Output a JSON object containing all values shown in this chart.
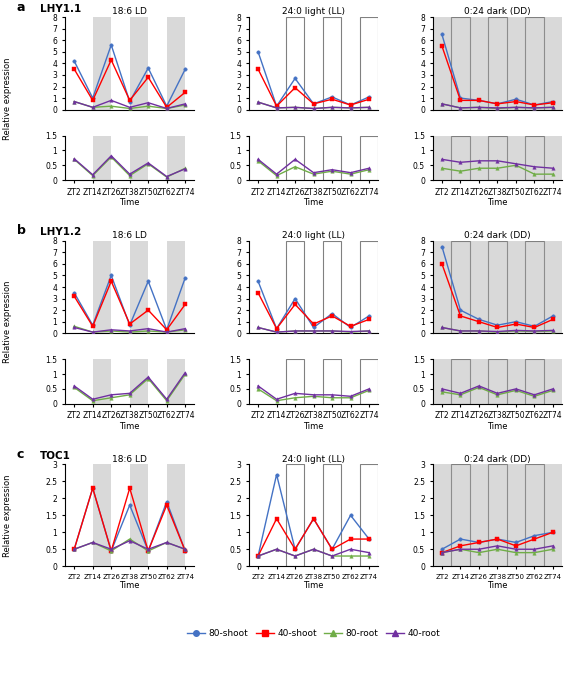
{
  "panels": [
    {
      "row_label": "a",
      "gene": "LHY1.1",
      "has_lower": true,
      "ylim_upper": [
        0,
        8
      ],
      "ylim_lower": [
        0,
        1.5
      ],
      "yticks_upper": [
        0,
        1,
        2,
        3,
        4,
        5,
        6,
        7,
        8
      ],
      "yticks_lower": [
        0,
        0.5,
        1,
        1.5
      ],
      "conditions": [
        {
          "title": "18:6 LD",
          "shade": "LD",
          "upper": {
            "80s": [
              4.2,
              1.0,
              5.6,
              0.7,
              3.6,
              0.3,
              3.5
            ],
            "40s": [
              3.5,
              0.8,
              4.3,
              0.8,
              2.8,
              0.2,
              1.5
            ],
            "80r": [
              0.7,
              0.2,
              0.3,
              0.1,
              0.3,
              0.1,
              0.4
            ],
            "40r": [
              0.7,
              0.2,
              0.8,
              0.2,
              0.6,
              0.1,
              0.5
            ]
          },
          "lower": {
            "80r": [
              0.7,
              0.15,
              0.78,
              0.15,
              0.55,
              0.1,
              0.4
            ],
            "40r": [
              0.72,
              0.18,
              0.82,
              0.2,
              0.58,
              0.12,
              0.38
            ]
          }
        },
        {
          "title": "24:0 light (LL)",
          "shade": "LL",
          "upper": {
            "80s": [
              5.0,
              0.3,
              2.7,
              0.5,
              1.1,
              0.4,
              1.1
            ],
            "40s": [
              3.5,
              0.3,
              1.9,
              0.5,
              0.9,
              0.4,
              0.9
            ],
            "80r": [
              0.65,
              0.15,
              0.2,
              0.1,
              0.2,
              0.15,
              0.2
            ],
            "40r": [
              0.65,
              0.15,
              0.2,
              0.1,
              0.2,
              0.15,
              0.2
            ]
          },
          "lower": {
            "80r": [
              0.65,
              0.15,
              0.45,
              0.2,
              0.3,
              0.2,
              0.35
            ],
            "40r": [
              0.7,
              0.2,
              0.7,
              0.25,
              0.35,
              0.25,
              0.4
            ]
          }
        },
        {
          "title": "0:24 dark (DD)",
          "shade": "DD",
          "upper": {
            "80s": [
              6.5,
              1.0,
              0.8,
              0.5,
              0.9,
              0.4,
              0.7
            ],
            "40s": [
              5.5,
              0.8,
              0.8,
              0.5,
              0.7,
              0.4,
              0.6
            ],
            "80r": [
              0.5,
              0.15,
              0.2,
              0.1,
              0.2,
              0.15,
              0.2
            ],
            "40r": [
              0.5,
              0.15,
              0.2,
              0.15,
              0.2,
              0.15,
              0.2
            ]
          },
          "lower": {
            "80r": [
              0.4,
              0.3,
              0.4,
              0.4,
              0.5,
              0.2,
              0.2
            ],
            "40r": [
              0.7,
              0.6,
              0.65,
              0.65,
              0.55,
              0.45,
              0.4
            ]
          }
        }
      ]
    },
    {
      "row_label": "b",
      "gene": "LHY1.2",
      "has_lower": true,
      "ylim_upper": [
        0,
        8
      ],
      "ylim_lower": [
        0,
        1.5
      ],
      "yticks_upper": [
        0,
        1,
        2,
        3,
        4,
        5,
        6,
        7,
        8
      ],
      "yticks_lower": [
        0,
        0.5,
        1,
        1.5
      ],
      "conditions": [
        {
          "title": "18:6 LD",
          "shade": "LD",
          "upper": {
            "80s": [
              3.5,
              0.7,
              5.0,
              0.7,
              4.5,
              0.3,
              4.8
            ],
            "40s": [
              3.2,
              0.6,
              4.5,
              0.8,
              2.0,
              0.3,
              2.5
            ],
            "80r": [
              0.6,
              0.1,
              0.2,
              0.1,
              0.2,
              0.1,
              0.3
            ],
            "40r": [
              0.5,
              0.1,
              0.3,
              0.2,
              0.4,
              0.1,
              0.4
            ]
          },
          "lower": {
            "80r": [
              0.55,
              0.1,
              0.2,
              0.3,
              0.85,
              0.1,
              1.0
            ],
            "40r": [
              0.6,
              0.15,
              0.3,
              0.35,
              0.9,
              0.15,
              1.05
            ]
          }
        },
        {
          "title": "24:0 light (LL)",
          "shade": "LL",
          "upper": {
            "80s": [
              4.5,
              0.4,
              3.0,
              0.5,
              1.7,
              0.5,
              1.5
            ],
            "40s": [
              3.5,
              0.4,
              2.5,
              0.8,
              1.5,
              0.6,
              1.2
            ],
            "80r": [
              0.5,
              0.1,
              0.2,
              0.2,
              0.2,
              0.1,
              0.2
            ],
            "40r": [
              0.5,
              0.1,
              0.2,
              0.2,
              0.2,
              0.15,
              0.2
            ]
          },
          "lower": {
            "80r": [
              0.5,
              0.1,
              0.2,
              0.25,
              0.2,
              0.2,
              0.45
            ],
            "40r": [
              0.6,
              0.15,
              0.35,
              0.3,
              0.3,
              0.25,
              0.5
            ]
          }
        },
        {
          "title": "0:24 dark (DD)",
          "shade": "DD",
          "upper": {
            "80s": [
              7.5,
              2.0,
              1.2,
              0.7,
              1.0,
              0.6,
              1.5
            ],
            "40s": [
              6.0,
              1.5,
              1.0,
              0.5,
              0.8,
              0.5,
              1.2
            ],
            "80r": [
              0.5,
              0.2,
              0.2,
              0.1,
              0.2,
              0.15,
              0.2
            ],
            "40r": [
              0.5,
              0.2,
              0.2,
              0.15,
              0.25,
              0.2,
              0.25
            ]
          },
          "lower": {
            "80r": [
              0.4,
              0.3,
              0.55,
              0.3,
              0.45,
              0.25,
              0.45
            ],
            "40r": [
              0.5,
              0.35,
              0.6,
              0.35,
              0.5,
              0.3,
              0.5
            ]
          }
        }
      ]
    },
    {
      "row_label": "c",
      "gene": "TOC1",
      "has_lower": false,
      "ylim_upper": [
        0,
        3
      ],
      "ylim_lower": null,
      "yticks_upper": [
        0,
        0.5,
        1,
        1.5,
        2,
        2.5,
        3
      ],
      "yticks_lower": null,
      "conditions": [
        {
          "title": "18:6 LD",
          "shade": "LD",
          "upper": {
            "80s": [
              0.5,
              2.3,
              0.45,
              1.8,
              0.45,
              1.9,
              0.45
            ],
            "40s": [
              0.5,
              2.3,
              0.45,
              2.3,
              0.45,
              1.8,
              0.45
            ],
            "80r": [
              0.5,
              0.7,
              0.45,
              0.8,
              0.45,
              0.7,
              0.5
            ],
            "40r": [
              0.5,
              0.7,
              0.5,
              0.75,
              0.5,
              0.7,
              0.5
            ]
          },
          "lower": null
        },
        {
          "title": "24:0 light (LL)",
          "shade": "LL",
          "upper": {
            "80s": [
              0.3,
              2.7,
              0.5,
              1.4,
              0.5,
              1.5,
              0.8
            ],
            "40s": [
              0.3,
              1.4,
              0.5,
              1.4,
              0.5,
              0.8,
              0.8
            ],
            "80r": [
              0.3,
              0.5,
              0.3,
              0.5,
              0.3,
              0.3,
              0.3
            ],
            "40r": [
              0.3,
              0.5,
              0.3,
              0.5,
              0.3,
              0.5,
              0.4
            ]
          },
          "lower": null
        },
        {
          "title": "0:24 dark (DD)",
          "shade": "DD",
          "upper": {
            "80s": [
              0.5,
              0.8,
              0.7,
              0.8,
              0.7,
              0.9,
              1.0
            ],
            "40s": [
              0.4,
              0.6,
              0.7,
              0.8,
              0.6,
              0.8,
              1.0
            ],
            "80r": [
              0.4,
              0.5,
              0.4,
              0.5,
              0.4,
              0.4,
              0.5
            ],
            "40r": [
              0.4,
              0.5,
              0.5,
              0.6,
              0.5,
              0.5,
              0.6
            ]
          },
          "lower": null
        }
      ]
    }
  ],
  "colors": {
    "80s": "#4472C4",
    "40s": "#FF0000",
    "80r": "#70AD47",
    "40r": "#7030A0"
  },
  "markers": {
    "80s": "o",
    "40s": "s",
    "80r": "^",
    "40r": "^"
  },
  "legend": [
    {
      "key": "80s",
      "label": "80-shoot",
      "marker": "o"
    },
    {
      "key": "40s",
      "label": "40-shoot",
      "marker": "s"
    },
    {
      "key": "80r",
      "label": "80-root",
      "marker": "^"
    },
    {
      "key": "40r",
      "label": "40-root",
      "marker": "^"
    }
  ],
  "xtick_labels": [
    "ZT2",
    "ZT14",
    "ZT26",
    "ZT38",
    "ZT50",
    "ZT62",
    "ZT74"
  ],
  "shade_grey": "#d9d9d9",
  "marker_size": 2.5,
  "linewidth": 1.0
}
